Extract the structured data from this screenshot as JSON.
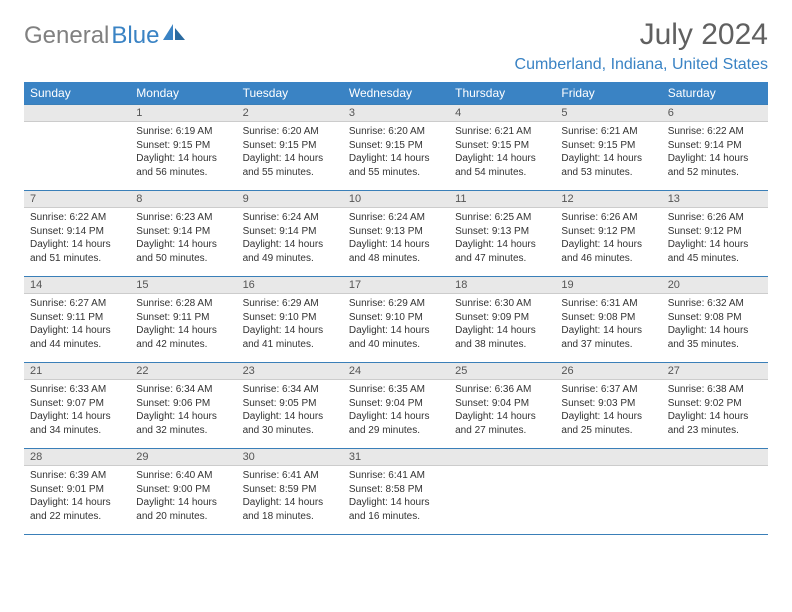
{
  "logo": {
    "part1": "General",
    "part2": "Blue"
  },
  "title": "July 2024",
  "location": "Cumberland, Indiana, United States",
  "colors": {
    "header_bg": "#3a83c4",
    "header_fg": "#ffffff",
    "daynum_bg": "#e8e8e8",
    "border": "#3a7fb8",
    "logo_gray": "#808080",
    "logo_blue": "#3a83c4",
    "text": "#333333"
  },
  "typography": {
    "title_fontsize": 30,
    "location_fontsize": 16,
    "header_fontsize": 12,
    "daynum_fontsize": 11,
    "body_fontsize": 10
  },
  "layout": {
    "columns": 7,
    "rows": 5
  },
  "day_headers": [
    "Sunday",
    "Monday",
    "Tuesday",
    "Wednesday",
    "Thursday",
    "Friday",
    "Saturday"
  ],
  "weeks": [
    [
      null,
      {
        "n": "1",
        "sr": "Sunrise: 6:19 AM",
        "ss": "Sunset: 9:15 PM",
        "d1": "Daylight: 14 hours",
        "d2": "and 56 minutes."
      },
      {
        "n": "2",
        "sr": "Sunrise: 6:20 AM",
        "ss": "Sunset: 9:15 PM",
        "d1": "Daylight: 14 hours",
        "d2": "and 55 minutes."
      },
      {
        "n": "3",
        "sr": "Sunrise: 6:20 AM",
        "ss": "Sunset: 9:15 PM",
        "d1": "Daylight: 14 hours",
        "d2": "and 55 minutes."
      },
      {
        "n": "4",
        "sr": "Sunrise: 6:21 AM",
        "ss": "Sunset: 9:15 PM",
        "d1": "Daylight: 14 hours",
        "d2": "and 54 minutes."
      },
      {
        "n": "5",
        "sr": "Sunrise: 6:21 AM",
        "ss": "Sunset: 9:15 PM",
        "d1": "Daylight: 14 hours",
        "d2": "and 53 minutes."
      },
      {
        "n": "6",
        "sr": "Sunrise: 6:22 AM",
        "ss": "Sunset: 9:14 PM",
        "d1": "Daylight: 14 hours",
        "d2": "and 52 minutes."
      }
    ],
    [
      {
        "n": "7",
        "sr": "Sunrise: 6:22 AM",
        "ss": "Sunset: 9:14 PM",
        "d1": "Daylight: 14 hours",
        "d2": "and 51 minutes."
      },
      {
        "n": "8",
        "sr": "Sunrise: 6:23 AM",
        "ss": "Sunset: 9:14 PM",
        "d1": "Daylight: 14 hours",
        "d2": "and 50 minutes."
      },
      {
        "n": "9",
        "sr": "Sunrise: 6:24 AM",
        "ss": "Sunset: 9:14 PM",
        "d1": "Daylight: 14 hours",
        "d2": "and 49 minutes."
      },
      {
        "n": "10",
        "sr": "Sunrise: 6:24 AM",
        "ss": "Sunset: 9:13 PM",
        "d1": "Daylight: 14 hours",
        "d2": "and 48 minutes."
      },
      {
        "n": "11",
        "sr": "Sunrise: 6:25 AM",
        "ss": "Sunset: 9:13 PM",
        "d1": "Daylight: 14 hours",
        "d2": "and 47 minutes."
      },
      {
        "n": "12",
        "sr": "Sunrise: 6:26 AM",
        "ss": "Sunset: 9:12 PM",
        "d1": "Daylight: 14 hours",
        "d2": "and 46 minutes."
      },
      {
        "n": "13",
        "sr": "Sunrise: 6:26 AM",
        "ss": "Sunset: 9:12 PM",
        "d1": "Daylight: 14 hours",
        "d2": "and 45 minutes."
      }
    ],
    [
      {
        "n": "14",
        "sr": "Sunrise: 6:27 AM",
        "ss": "Sunset: 9:11 PM",
        "d1": "Daylight: 14 hours",
        "d2": "and 44 minutes."
      },
      {
        "n": "15",
        "sr": "Sunrise: 6:28 AM",
        "ss": "Sunset: 9:11 PM",
        "d1": "Daylight: 14 hours",
        "d2": "and 42 minutes."
      },
      {
        "n": "16",
        "sr": "Sunrise: 6:29 AM",
        "ss": "Sunset: 9:10 PM",
        "d1": "Daylight: 14 hours",
        "d2": "and 41 minutes."
      },
      {
        "n": "17",
        "sr": "Sunrise: 6:29 AM",
        "ss": "Sunset: 9:10 PM",
        "d1": "Daylight: 14 hours",
        "d2": "and 40 minutes."
      },
      {
        "n": "18",
        "sr": "Sunrise: 6:30 AM",
        "ss": "Sunset: 9:09 PM",
        "d1": "Daylight: 14 hours",
        "d2": "and 38 minutes."
      },
      {
        "n": "19",
        "sr": "Sunrise: 6:31 AM",
        "ss": "Sunset: 9:08 PM",
        "d1": "Daylight: 14 hours",
        "d2": "and 37 minutes."
      },
      {
        "n": "20",
        "sr": "Sunrise: 6:32 AM",
        "ss": "Sunset: 9:08 PM",
        "d1": "Daylight: 14 hours",
        "d2": "and 35 minutes."
      }
    ],
    [
      {
        "n": "21",
        "sr": "Sunrise: 6:33 AM",
        "ss": "Sunset: 9:07 PM",
        "d1": "Daylight: 14 hours",
        "d2": "and 34 minutes."
      },
      {
        "n": "22",
        "sr": "Sunrise: 6:34 AM",
        "ss": "Sunset: 9:06 PM",
        "d1": "Daylight: 14 hours",
        "d2": "and 32 minutes."
      },
      {
        "n": "23",
        "sr": "Sunrise: 6:34 AM",
        "ss": "Sunset: 9:05 PM",
        "d1": "Daylight: 14 hours",
        "d2": "and 30 minutes."
      },
      {
        "n": "24",
        "sr": "Sunrise: 6:35 AM",
        "ss": "Sunset: 9:04 PM",
        "d1": "Daylight: 14 hours",
        "d2": "and 29 minutes."
      },
      {
        "n": "25",
        "sr": "Sunrise: 6:36 AM",
        "ss": "Sunset: 9:04 PM",
        "d1": "Daylight: 14 hours",
        "d2": "and 27 minutes."
      },
      {
        "n": "26",
        "sr": "Sunrise: 6:37 AM",
        "ss": "Sunset: 9:03 PM",
        "d1": "Daylight: 14 hours",
        "d2": "and 25 minutes."
      },
      {
        "n": "27",
        "sr": "Sunrise: 6:38 AM",
        "ss": "Sunset: 9:02 PM",
        "d1": "Daylight: 14 hours",
        "d2": "and 23 minutes."
      }
    ],
    [
      {
        "n": "28",
        "sr": "Sunrise: 6:39 AM",
        "ss": "Sunset: 9:01 PM",
        "d1": "Daylight: 14 hours",
        "d2": "and 22 minutes."
      },
      {
        "n": "29",
        "sr": "Sunrise: 6:40 AM",
        "ss": "Sunset: 9:00 PM",
        "d1": "Daylight: 14 hours",
        "d2": "and 20 minutes."
      },
      {
        "n": "30",
        "sr": "Sunrise: 6:41 AM",
        "ss": "Sunset: 8:59 PM",
        "d1": "Daylight: 14 hours",
        "d2": "and 18 minutes."
      },
      {
        "n": "31",
        "sr": "Sunrise: 6:41 AM",
        "ss": "Sunset: 8:58 PM",
        "d1": "Daylight: 14 hours",
        "d2": "and 16 minutes."
      },
      null,
      null,
      null
    ]
  ]
}
